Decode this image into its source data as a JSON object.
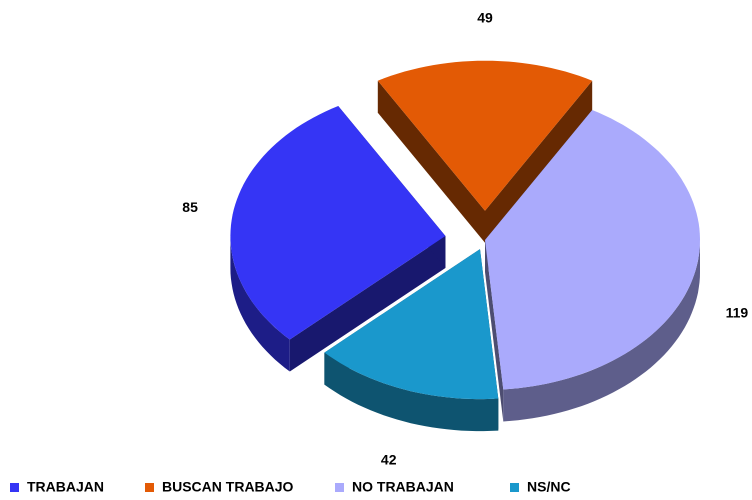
{
  "chart_data": {
    "type": "pie3d",
    "categories": [
      "TRABAJAN",
      "BUSCAN TRABAJO",
      "NO TRABAJAN",
      "NS/NC"
    ],
    "values": [
      85,
      49,
      119,
      42
    ],
    "colors": [
      "#3535f5",
      "#e35a05",
      "#aaaafc",
      "#1a98cc"
    ],
    "legend": "bottom"
  }
}
